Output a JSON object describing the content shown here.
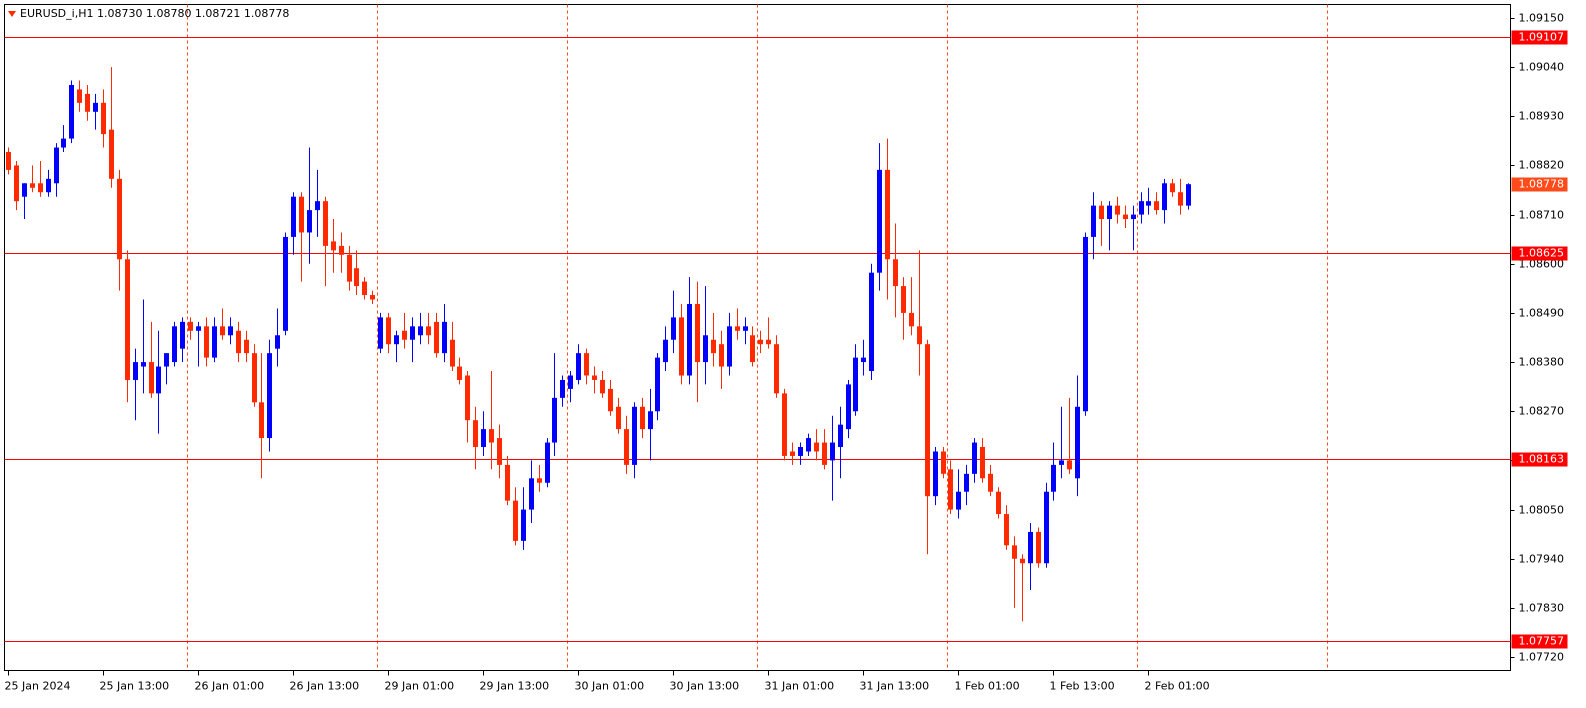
{
  "chart_data": {
    "type": "candlestick",
    "title": "EURUSD_i,H1  1.08730 1.08780 1.08721 1.08778",
    "up_color": "#0000ff",
    "down_color": "#ff2a00",
    "categories": [
      "25 Jan 2024",
      null,
      null,
      null,
      null,
      null,
      null,
      null,
      null,
      null,
      null,
      null,
      "25 Jan 13:00",
      null,
      null,
      null,
      null,
      null,
      null,
      null,
      null,
      null,
      null,
      null,
      "26 Jan 01:00",
      null,
      null,
      null,
      null,
      null,
      null,
      null,
      null,
      null,
      null,
      null,
      "26 Jan 13:00",
      null,
      null,
      null,
      null,
      null,
      null,
      null,
      null,
      null,
      null,
      null,
      "29 Jan 01:00",
      null,
      null,
      null,
      null,
      null,
      null,
      null,
      null,
      null,
      null,
      null,
      "29 Jan 13:00",
      null,
      null,
      null,
      null,
      null,
      null,
      null,
      null,
      null,
      null,
      null,
      "30 Jan 01:00",
      null,
      null,
      null,
      null,
      null,
      null,
      null,
      null,
      null,
      null,
      null,
      "30 Jan 13:00",
      null,
      null,
      null,
      null,
      null,
      null,
      null,
      null,
      null,
      null,
      null,
      "31 Jan 01:00",
      null,
      null,
      null,
      null,
      null,
      null,
      null,
      null,
      null,
      null,
      null,
      "31 Jan 13:00",
      null,
      null,
      null,
      null,
      null,
      null,
      null,
      null,
      null,
      null,
      null,
      "1 Feb 01:00",
      null,
      null,
      null,
      null,
      null,
      null,
      null,
      null,
      null,
      null,
      null,
      "1 Feb 13:00",
      null,
      null,
      null,
      null,
      null,
      null,
      null,
      null,
      null,
      null,
      null,
      "2 Feb 01:00",
      null,
      null,
      null,
      null,
      null
    ],
    "open": [
      1.0885,
      1.0882,
      1.0875,
      1.0878,
      1.0878,
      1.0876,
      1.0878,
      1.0886,
      1.0888,
      1.0899,
      1.0898,
      1.0894,
      1.0896,
      1.089,
      1.0879,
      1.0861,
      1.0834,
      1.0837,
      1.0838,
      1.0831,
      1.0837,
      1.0838,
      1.0841,
      1.0847,
      1.0845,
      1.0846,
      1.0839,
      1.0846,
      1.0844,
      1.0845,
      1.0843,
      1.084,
      1.0829,
      1.0821,
      1.0841,
      1.0845,
      1.0866,
      1.0875,
      1.0867,
      1.0872,
      1.0874,
      1.0865,
      1.0864,
      1.0862,
      1.0859,
      1.0856,
      1.0853,
      1.0841,
      1.0848,
      1.0842,
      1.0845,
      1.0843,
      1.0844,
      1.0846,
      1.0847,
      1.084,
      1.0843,
      1.0837,
      1.0835,
      1.0825,
      1.0819,
      1.0823,
      1.0821,
      1.0815,
      1.0807,
      1.0798,
      1.0805,
      1.0812,
      1.0811,
      1.082,
      1.083,
      1.0832,
      1.0834,
      1.084,
      1.0835,
      1.0834,
      1.0832,
      1.0828,
      1.0823,
      1.0815,
      1.0828,
      1.0823,
      1.0827,
      1.0838,
      1.0843,
      1.0848,
      1.0835,
      1.0851,
      1.0838,
      1.0843,
      1.0842,
      1.0837,
      1.0846,
      1.0845,
      1.0844,
      1.0843,
      1.0843,
      1.0842,
      1.0831,
      1.0818,
      1.0817,
      1.0818,
      1.082,
      1.082,
      1.0816,
      1.0819,
      1.0823,
      1.0827,
      1.0838,
      1.0836,
      1.0858,
      1.0881,
      1.0861,
      1.0855,
      1.0849,
      1.0846,
      1.0842,
      1.0808,
      1.0818,
      1.0814,
      1.0805,
      1.0809,
      1.0813,
      1.0819,
      1.0813,
      1.0809,
      1.0804,
      1.0797,
      1.0794,
      1.0793,
      1.08,
      1.0793,
      1.0809,
      1.0815,
      1.0816,
      1.0812,
      1.0827,
      1.0866,
      1.0873,
      1.087,
      1.0873,
      1.0871,
      1.087,
      1.0871,
      1.0873,
      1.0874,
      1.0872,
      1.0878,
      1.0876,
      1.0873
    ],
    "high": [
      1.0886,
      1.0883,
      1.0878,
      1.0882,
      1.0883,
      1.0881,
      1.0887,
      1.0891,
      1.0901,
      1.0901,
      1.09,
      1.0898,
      1.0899,
      1.0904,
      1.0881,
      1.0863,
      1.0841,
      1.0852,
      1.0847,
      1.0845,
      1.084,
      1.0847,
      1.0848,
      1.0848,
      1.0847,
      1.0848,
      1.0848,
      1.085,
      1.0848,
      1.0847,
      1.0845,
      1.0842,
      1.084,
      1.0843,
      1.085,
      1.0867,
      1.0876,
      1.0876,
      1.0886,
      1.0881,
      1.0875,
      1.087,
      1.0867,
      1.0864,
      1.0863,
      1.0857,
      1.0854,
      1.0849,
      1.0849,
      1.0845,
      1.0849,
      1.0848,
      1.0849,
      1.0849,
      1.0849,
      1.0851,
      1.0847,
      1.0839,
      1.0836,
      1.0828,
      1.0827,
      1.0836,
      1.0824,
      1.0817,
      1.081,
      1.081,
      1.0816,
      1.0815,
      1.0821,
      1.084,
      1.0835,
      1.0836,
      1.0842,
      1.0841,
      1.0837,
      1.0836,
      1.0834,
      1.083,
      1.0826,
      1.0829,
      1.083,
      1.0832,
      1.084,
      1.0846,
      1.0854,
      1.0851,
      1.0857,
      1.0856,
      1.0855,
      1.0849,
      1.0845,
      1.0849,
      1.085,
      1.0848,
      1.0846,
      1.0845,
      1.0848,
      1.0844,
      1.0832,
      1.082,
      1.082,
      1.0822,
      1.0823,
      1.0823,
      1.0826,
      1.0828,
      1.0834,
      1.0842,
      1.0843,
      1.086,
      1.0887,
      1.0888,
      1.0869,
      1.0857,
      1.0857,
      1.0863,
      1.0843,
      1.0819,
      1.0819,
      1.0816,
      1.0814,
      1.0815,
      1.0821,
      1.0821,
      1.0815,
      1.081,
      1.0806,
      1.0799,
      1.0795,
      1.0802,
      1.0801,
      1.0811,
      1.082,
      1.0828,
      1.083,
      1.0835,
      1.0867,
      1.0876,
      1.0874,
      1.0874,
      1.0875,
      1.0873,
      1.0873,
      1.0876,
      1.0877,
      1.0876,
      1.0879,
      1.0879,
      1.0879,
      1.0878
    ],
    "low": [
      1.088,
      1.0872,
      1.087,
      1.0876,
      1.0875,
      1.0875,
      1.0875,
      1.0885,
      1.0887,
      1.0894,
      1.0892,
      1.089,
      1.0886,
      1.0877,
      1.0854,
      1.0829,
      1.0825,
      1.0831,
      1.083,
      1.0822,
      1.0833,
      1.0837,
      1.0838,
      1.0843,
      1.0837,
      1.0837,
      1.0838,
      1.0843,
      1.0842,
      1.0838,
      1.0838,
      1.0828,
      1.0812,
      1.0818,
      1.0837,
      1.0844,
      1.0862,
      1.0856,
      1.086,
      1.0866,
      1.0855,
      1.0858,
      1.0858,
      1.0854,
      1.0853,
      1.0852,
      1.0851,
      1.084,
      1.084,
      1.0838,
      1.0841,
      1.0838,
      1.0842,
      1.0842,
      1.0839,
      1.0838,
      1.0836,
      1.0833,
      1.082,
      1.0814,
      1.0817,
      1.0814,
      1.0812,
      1.0806,
      1.0797,
      1.0796,
      1.0802,
      1.0809,
      1.081,
      1.0817,
      1.0828,
      1.0829,
      1.0833,
      1.0833,
      1.0831,
      1.083,
      1.0826,
      1.0822,
      1.0813,
      1.0812,
      1.0821,
      1.0816,
      1.0825,
      1.0836,
      1.084,
      1.0833,
      1.0833,
      1.0829,
      1.0833,
      1.0837,
      1.0832,
      1.0835,
      1.0843,
      1.0842,
      1.0837,
      1.084,
      1.0841,
      1.083,
      1.0816,
      1.0815,
      1.0815,
      1.0817,
      1.0816,
      1.0814,
      1.0807,
      1.0812,
      1.0821,
      1.0826,
      1.0835,
      1.0834,
      1.0854,
      1.0852,
      1.0848,
      1.0843,
      1.0844,
      1.0835,
      1.0795,
      1.0806,
      1.0812,
      1.0804,
      1.0803,
      1.0806,
      1.0811,
      1.0811,
      1.0808,
      1.0803,
      1.0796,
      1.0783,
      1.078,
      1.0787,
      1.0792,
      1.0792,
      1.0807,
      1.0812,
      1.0813,
      1.0808,
      1.0826,
      1.0861,
      1.0864,
      1.0863,
      1.0869,
      1.0868,
      1.0863,
      1.0869,
      1.0871,
      1.0871,
      1.0869,
      1.0875,
      1.0871,
      1.08721
    ],
    "close": [
      1.0881,
      1.0874,
      1.0878,
      1.0877,
      1.0876,
      1.0879,
      1.0886,
      1.0888,
      1.09,
      1.0896,
      1.0894,
      1.0896,
      1.0889,
      1.0879,
      1.0861,
      1.0834,
      1.0838,
      1.0838,
      1.0831,
      1.0837,
      1.084,
      1.0846,
      1.0847,
      1.0845,
      1.0846,
      1.0839,
      1.0846,
      1.0844,
      1.0846,
      1.084,
      1.084,
      1.0829,
      1.0821,
      1.084,
      1.0844,
      1.0866,
      1.0875,
      1.0867,
      1.0872,
      1.0874,
      1.0864,
      1.0863,
      1.0862,
      1.0856,
      1.0855,
      1.0853,
      1.0852,
      1.0848,
      1.0842,
      1.0844,
      1.0843,
      1.0846,
      1.0846,
      1.0844,
      1.084,
      1.0847,
      1.0837,
      1.0834,
      1.0825,
      1.0819,
      1.0823,
      1.082,
      1.0815,
      1.0807,
      1.0798,
      1.0805,
      1.0812,
      1.0811,
      1.082,
      1.083,
      1.0834,
      1.0835,
      1.084,
      1.0835,
      1.0834,
      1.0831,
      1.0827,
      1.0823,
      1.0815,
      1.0828,
      1.0823,
      1.0827,
      1.0839,
      1.0843,
      1.0848,
      1.0835,
      1.0851,
      1.0838,
      1.0844,
      1.084,
      1.0837,
      1.0846,
      1.0845,
      1.0846,
      1.0838,
      1.0842,
      1.0842,
      1.0831,
      1.0817,
      1.0817,
      1.0819,
      1.0821,
      1.0818,
      1.0815,
      1.082,
      1.0824,
      1.0833,
      1.0839,
      1.0839,
      1.0858,
      1.0881,
      1.0861,
      1.0855,
      1.0849,
      1.0846,
      1.0842,
      1.0808,
      1.0818,
      1.0813,
      1.0805,
      1.0809,
      1.0813,
      1.082,
      1.0812,
      1.0809,
      1.0804,
      1.0797,
      1.0794,
      1.0793,
      1.08,
      1.0793,
      1.0809,
      1.0815,
      1.0816,
      1.0814,
      1.0828,
      1.0866,
      1.0873,
      1.087,
      1.0873,
      1.0871,
      1.087,
      1.0871,
      1.0874,
      1.0874,
      1.0872,
      1.0878,
      1.0876,
      1.0873,
      1.08778
    ],
    "ylim": [
      1.0769,
      1.0918
    ],
    "yticks": [
      {
        "value": 1.0915,
        "label": "1.09150"
      },
      {
        "value": 1.0904,
        "label": "1.09040"
      },
      {
        "value": 1.0893,
        "label": "1.08930"
      },
      {
        "value": 1.0882,
        "label": "1.08820"
      },
      {
        "value": 1.0871,
        "label": "1.08710"
      },
      {
        "value": 1.086,
        "label": "1.08600"
      },
      {
        "value": 1.0849,
        "label": "1.08490"
      },
      {
        "value": 1.0838,
        "label": "1.08380"
      },
      {
        "value": 1.0827,
        "label": "1.08270"
      },
      {
        "value": 1.0816,
        "label": "1.08160"
      },
      {
        "value": 1.0805,
        "label": "1.08050"
      },
      {
        "value": 1.0794,
        "label": "1.07940"
      },
      {
        "value": 1.0783,
        "label": "1.07830"
      },
      {
        "value": 1.0772,
        "label": "1.07720"
      }
    ],
    "levels": [
      1.09107,
      1.08625,
      1.08163,
      1.07757
    ],
    "level_color": "#ff0000",
    "current_price": 1.08778,
    "current_color": "#ff4a1a",
    "separator_color": "#ff4a1a"
  }
}
